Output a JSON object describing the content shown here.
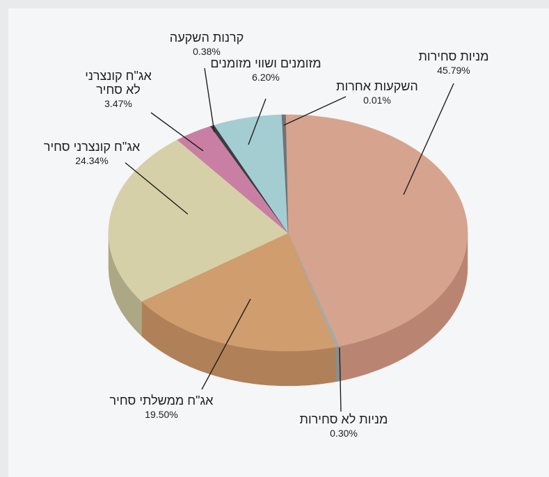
{
  "chart_data": {
    "type": "pie",
    "title": "",
    "slices": [
      {
        "label": [
          "מניות סחירות"
        ],
        "value_label": "45.79%",
        "value": 45.79,
        "color": "#d6a38e",
        "side": "#b98572"
      },
      {
        "label": [
          "מניות לא סחירות"
        ],
        "value_label": "0.30%",
        "value": 0.3,
        "color": "#a6aaa6",
        "side": "#8a8e8a"
      },
      {
        "label": [
          "אג\"ח ממשלתי סחיר"
        ],
        "value_label": "19.50%",
        "value": 19.5,
        "color": "#cf9d6e",
        "side": "#b08058"
      },
      {
        "label": [
          "אג\"ח קונצרני סחיר"
        ],
        "value_label": "24.34%",
        "value": 24.34,
        "color": "#d5d0a8",
        "side": "#aca785"
      },
      {
        "label": [
          "אג\"ח קונצרני",
          "לא סחיר"
        ],
        "value_label": "3.47%",
        "value": 3.47,
        "color": "#c97fa3",
        "side": "#a4657f"
      },
      {
        "label": [
          "קרנות השקעה"
        ],
        "value_label": "0.38%",
        "value": 0.38,
        "color": "#3a3d40",
        "side": "#26282a"
      },
      {
        "label": [
          "מזומנים ושווי מזומנים"
        ],
        "value_label": "6.20%",
        "value": 6.2,
        "color": "#a4cdd2",
        "side": "#82a9ae"
      },
      {
        "label": [
          "השקעות אחרות"
        ],
        "value_label": "0.01%",
        "value": 0.01,
        "color": "#6f7378",
        "side": "#55585c"
      }
    ]
  }
}
